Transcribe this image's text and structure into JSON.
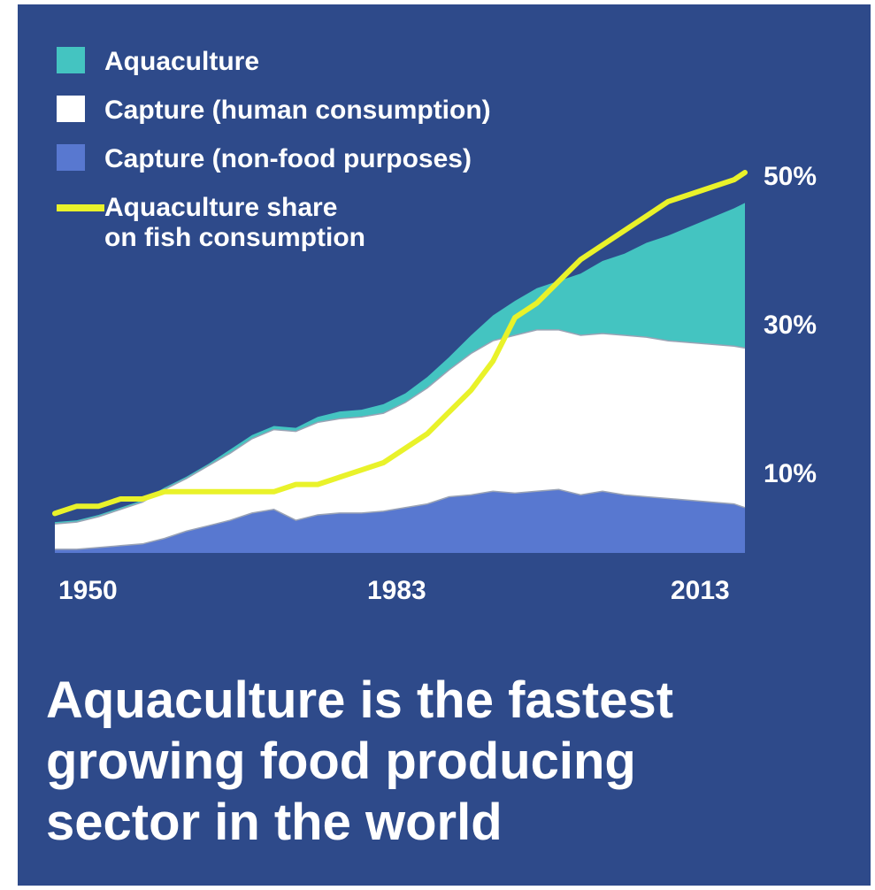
{
  "colors": {
    "background": "#2e4a8a",
    "aquaculture": "#44c4c1",
    "capture_human": "#ffffff",
    "capture_nonfood": "#5878d0",
    "share_line": "#e9f22a"
  },
  "legend": [
    {
      "label": "Aquaculture",
      "color": "#44c4c1"
    },
    {
      "label": "Capture (human consumption)",
      "color": "#ffffff"
    },
    {
      "label": "Capture (non-food purposes)",
      "color": "#5878d0"
    },
    {
      "label_line1": "Aquaculture share",
      "label_line2": "on fish consumption",
      "color": "#e9f22a"
    }
  ],
  "headline": {
    "line1": "Aquaculture is the fastest",
    "line2": "growing food producing",
    "line3": "sector in the world"
  },
  "chart_data": {
    "type": "area",
    "x_tick_labels": [
      "1950",
      "1983",
      "2013"
    ],
    "x_range": [
      1950,
      2013
    ],
    "y_right_tick_labels": [
      "50%",
      "30%",
      "10%"
    ],
    "stacked_series_order": [
      "Capture (non-food purposes)",
      "Capture (human consumption)",
      "Aquaculture"
    ],
    "x": [
      1950,
      1952,
      1954,
      1956,
      1958,
      1960,
      1962,
      1964,
      1966,
      1968,
      1970,
      1972,
      1974,
      1976,
      1978,
      1980,
      1982,
      1984,
      1986,
      1988,
      1990,
      1992,
      1994,
      1996,
      1998,
      2000,
      2002,
      2004,
      2006,
      2008,
      2010,
      2012,
      2013
    ],
    "series": [
      {
        "name": "Capture (non-food purposes)",
        "values": [
          2,
          2,
          3,
          4,
          5,
          8,
          12,
          15,
          18,
          22,
          24,
          18,
          21,
          22,
          22,
          23,
          25,
          27,
          31,
          32,
          34,
          33,
          34,
          35,
          32,
          34,
          32,
          31,
          30,
          29,
          28,
          27,
          25
        ]
      },
      {
        "name": "Capture (human consumption)",
        "values": [
          14,
          15,
          17,
          20,
          23,
          27,
          29,
          33,
          37,
          41,
          44,
          49,
          51,
          52,
          53,
          54,
          58,
          64,
          70,
          78,
          83,
          87,
          89,
          88,
          88,
          87,
          88,
          88,
          87,
          87,
          87,
          87,
          88
        ]
      },
      {
        "name": "Aquaculture",
        "values": [
          1,
          1,
          1,
          1,
          1,
          1,
          1,
          1,
          2,
          2,
          2,
          2,
          3,
          4,
          4,
          5,
          5,
          6,
          7,
          10,
          14,
          19,
          23,
          27,
          34,
          40,
          45,
          52,
          58,
          64,
          70,
          76,
          80
        ]
      },
      {
        "name": "Aquaculture share on fish consumption",
        "values": [
          3,
          4,
          4,
          5,
          5,
          6,
          6,
          6,
          6,
          6,
          6,
          7,
          7,
          8,
          9,
          10,
          12,
          14,
          17,
          20,
          24,
          30,
          32,
          35,
          38,
          40,
          42,
          44,
          46,
          47,
          48,
          49,
          50
        ]
      }
    ]
  }
}
